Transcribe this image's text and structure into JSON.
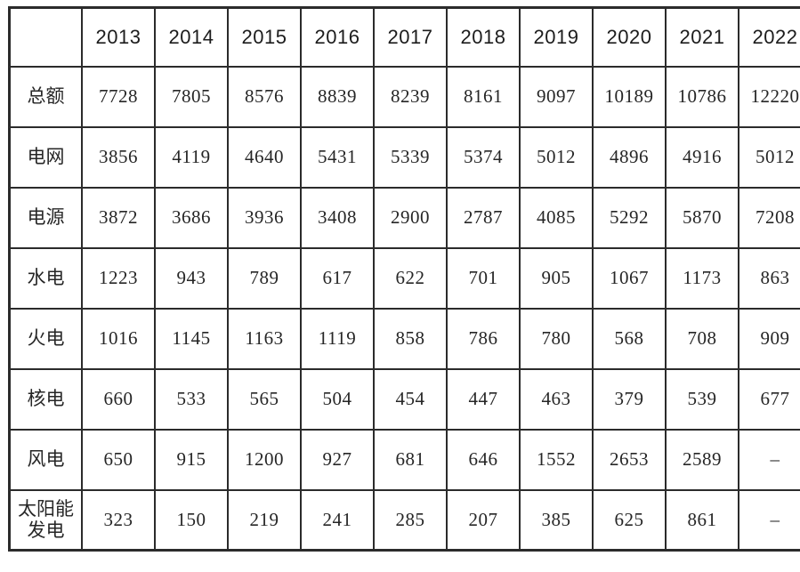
{
  "table": {
    "corner_label": "",
    "years": [
      "2013",
      "2014",
      "2015",
      "2016",
      "2017",
      "2018",
      "2019",
      "2020",
      "2021",
      "2022"
    ],
    "rows": [
      {
        "label": "总额",
        "values": [
          "7728",
          "7805",
          "8576",
          "8839",
          "8239",
          "8161",
          "9097",
          "10189",
          "10786",
          "12220"
        ]
      },
      {
        "label": "电网",
        "values": [
          "3856",
          "4119",
          "4640",
          "5431",
          "5339",
          "5374",
          "5012",
          "4896",
          "4916",
          "5012"
        ]
      },
      {
        "label": "电源",
        "values": [
          "3872",
          "3686",
          "3936",
          "3408",
          "2900",
          "2787",
          "4085",
          "5292",
          "5870",
          "7208"
        ]
      },
      {
        "label": "水电",
        "values": [
          "1223",
          "943",
          "789",
          "617",
          "622",
          "701",
          "905",
          "1067",
          "1173",
          "863"
        ]
      },
      {
        "label": "火电",
        "values": [
          "1016",
          "1145",
          "1163",
          "1119",
          "858",
          "786",
          "780",
          "568",
          "708",
          "909"
        ]
      },
      {
        "label": "核电",
        "values": [
          "660",
          "533",
          "565",
          "504",
          "454",
          "447",
          "463",
          "379",
          "539",
          "677"
        ]
      },
      {
        "label": "风电",
        "values": [
          "650",
          "915",
          "1200",
          "927",
          "681",
          "646",
          "1552",
          "2653",
          "2589",
          "–"
        ]
      },
      {
        "label": "太阳能发电",
        "values": [
          "323",
          "150",
          "219",
          "241",
          "285",
          "207",
          "385",
          "625",
          "861",
          "–"
        ]
      }
    ]
  },
  "chart_data": {
    "type": "table",
    "title": "",
    "columns": [
      "",
      "2013",
      "2014",
      "2015",
      "2016",
      "2017",
      "2018",
      "2019",
      "2020",
      "2021",
      "2022"
    ],
    "rows": [
      [
        "总额",
        7728,
        7805,
        8576,
        8839,
        8239,
        8161,
        9097,
        10189,
        10786,
        12220
      ],
      [
        "电网",
        3856,
        4119,
        4640,
        5431,
        5339,
        5374,
        5012,
        4896,
        4916,
        5012
      ],
      [
        "电源",
        3872,
        3686,
        3936,
        3408,
        2900,
        2787,
        4085,
        5292,
        5870,
        7208
      ],
      [
        "水电",
        1223,
        943,
        789,
        617,
        622,
        701,
        905,
        1067,
        1173,
        863
      ],
      [
        "火电",
        1016,
        1145,
        1163,
        1119,
        858,
        786,
        780,
        568,
        708,
        909
      ],
      [
        "核电",
        660,
        533,
        565,
        504,
        454,
        447,
        463,
        379,
        539,
        677
      ],
      [
        "风电",
        650,
        915,
        1200,
        927,
        681,
        646,
        1552,
        2653,
        2589,
        "–"
      ],
      [
        "太阳能发电",
        323,
        150,
        219,
        241,
        285,
        207,
        385,
        625,
        861,
        "–"
      ]
    ],
    "missing_value_marker": "–",
    "grid": true,
    "border_color": "#2b2b2b",
    "text_color": "#262626",
    "background_color": "#ffffff"
  }
}
